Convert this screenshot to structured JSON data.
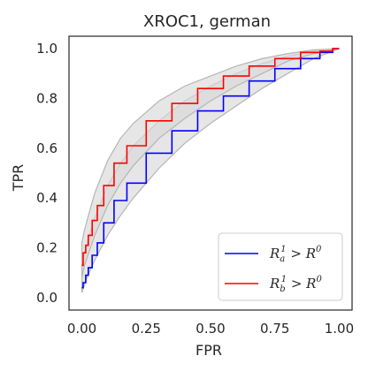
{
  "chart_data": {
    "type": "line",
    "title": "XROC1, german",
    "xlabel": "FPR",
    "ylabel": "TPR",
    "xlim": [
      -0.05,
      1.05
    ],
    "ylim": [
      -0.05,
      1.05
    ],
    "xticks": [
      0.0,
      0.25,
      0.5,
      0.75,
      1.0
    ],
    "xtick_labels": [
      "0.00",
      "0.25",
      "0.50",
      "0.75",
      "1.00"
    ],
    "yticks": [
      0.0,
      0.2,
      0.4,
      0.6,
      0.8,
      1.0
    ],
    "ytick_labels": [
      "0.0",
      "0.2",
      "0.4",
      "0.6",
      "0.8",
      "1.0"
    ],
    "grid": false,
    "legend_position": "lower-right",
    "colors": {
      "band_fill": "#d9d9d9",
      "band_edge": "#b5b5b5",
      "series_a": "#0000ff",
      "series_b": "#ff0000",
      "frame": "#262626"
    },
    "bands": [
      {
        "x": [
          0.0,
          0.01,
          0.02,
          0.05,
          0.1,
          0.15,
          0.2,
          0.3,
          0.4,
          0.5,
          0.6,
          0.7,
          0.8,
          0.9,
          1.0
        ],
        "lower": [
          0.02,
          0.05,
          0.08,
          0.15,
          0.25,
          0.33,
          0.4,
          0.52,
          0.62,
          0.7,
          0.77,
          0.84,
          0.9,
          0.96,
          1.0
        ],
        "upper": [
          0.12,
          0.18,
          0.22,
          0.32,
          0.45,
          0.54,
          0.61,
          0.71,
          0.79,
          0.85,
          0.9,
          0.94,
          0.97,
          0.99,
          1.0
        ]
      },
      {
        "x": [
          0.0,
          0.01,
          0.02,
          0.05,
          0.1,
          0.15,
          0.2,
          0.3,
          0.4,
          0.5,
          0.6,
          0.7,
          0.8,
          0.9,
          1.0
        ],
        "lower": [
          0.08,
          0.13,
          0.16,
          0.25,
          0.37,
          0.46,
          0.53,
          0.64,
          0.72,
          0.79,
          0.85,
          0.9,
          0.95,
          0.98,
          1.0
        ],
        "upper": [
          0.22,
          0.27,
          0.31,
          0.42,
          0.55,
          0.64,
          0.7,
          0.79,
          0.85,
          0.89,
          0.93,
          0.96,
          0.98,
          0.995,
          1.0
        ]
      }
    ],
    "series": [
      {
        "label_parts": [
          "R",
          "a",
          "1",
          " > R",
          "0"
        ],
        "color": "#0000ff",
        "x": [
          0.0,
          0.01,
          0.02,
          0.03,
          0.05,
          0.07,
          0.1,
          0.15,
          0.2,
          0.3,
          0.4,
          0.5,
          0.6,
          0.7,
          0.8,
          0.9,
          0.95,
          1.0
        ],
        "y": [
          0.04,
          0.06,
          0.09,
          0.12,
          0.17,
          0.22,
          0.3,
          0.39,
          0.46,
          0.58,
          0.67,
          0.75,
          0.81,
          0.87,
          0.92,
          0.96,
          0.985,
          1.0
        ]
      },
      {
        "label_parts": [
          "R",
          "b",
          "1",
          " > R",
          "0"
        ],
        "color": "#ff0000",
        "x": [
          0.0,
          0.01,
          0.02,
          0.03,
          0.05,
          0.07,
          0.1,
          0.15,
          0.2,
          0.3,
          0.4,
          0.5,
          0.6,
          0.7,
          0.8,
          0.9,
          0.95,
          1.0
        ],
        "y": [
          0.13,
          0.18,
          0.21,
          0.25,
          0.31,
          0.37,
          0.45,
          0.54,
          0.61,
          0.71,
          0.78,
          0.84,
          0.89,
          0.93,
          0.96,
          0.985,
          0.99,
          1.0
        ]
      }
    ]
  }
}
